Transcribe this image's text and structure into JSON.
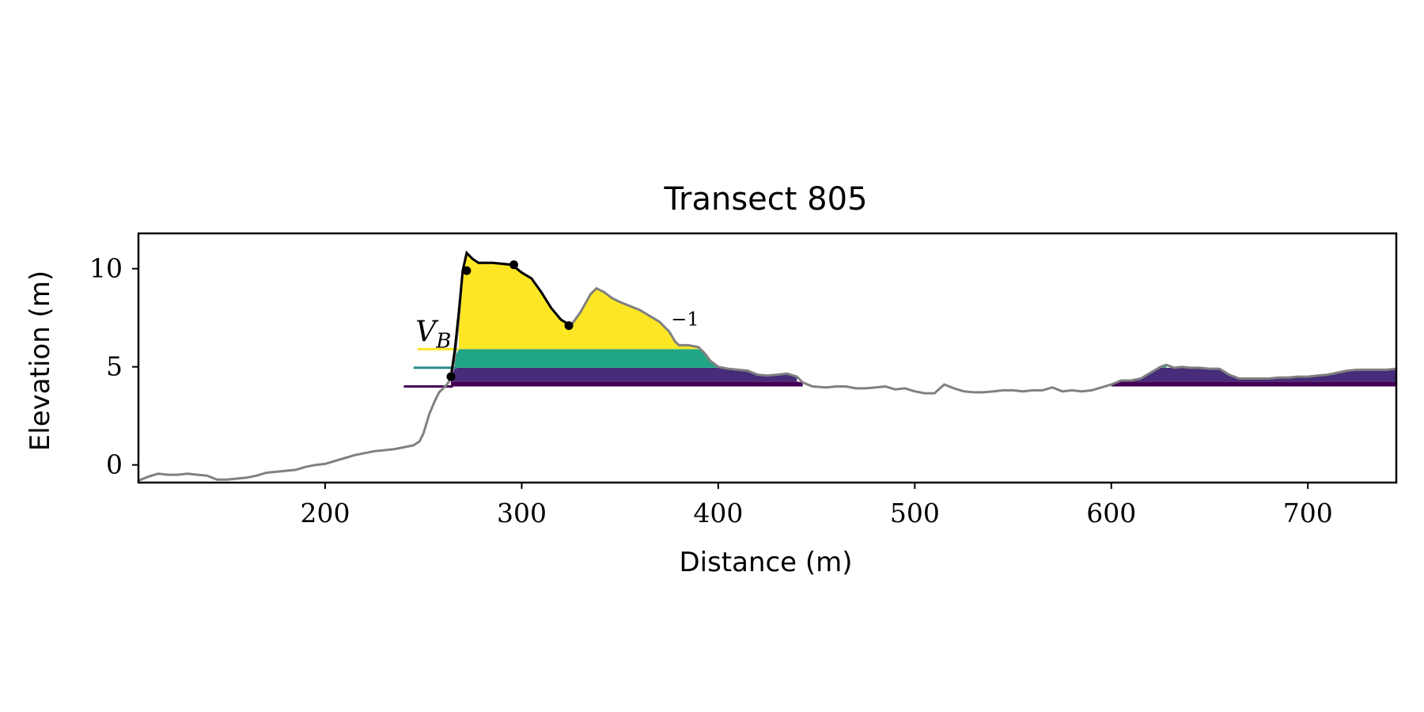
{
  "chart_data": {
    "type": "area",
    "title": "Transect 805",
    "xlabel": "Distance (m)",
    "ylabel": "Elevation (m)",
    "xlim": [
      105,
      745
    ],
    "ylim": [
      -0.9,
      11.8
    ],
    "xticks": [
      200,
      300,
      400,
      500,
      600,
      700
    ],
    "yticks": [
      0,
      5,
      10
    ],
    "grid": false,
    "colors": {
      "profile": "#808080",
      "dune": "#000000",
      "band_yellow": "#fde725",
      "band_green": "#21a685",
      "band_teal": "#2a8b8b",
      "band_purple": "#472c7a",
      "band_dark": "#440154"
    },
    "profile": {
      "x": [
        105,
        110,
        115,
        120,
        125,
        130,
        135,
        140,
        145,
        150,
        155,
        160,
        165,
        170,
        175,
        180,
        185,
        190,
        195,
        200,
        205,
        210,
        215,
        220,
        225,
        230,
        235,
        240,
        245,
        248,
        250,
        253,
        256,
        258,
        260,
        262,
        264,
        266,
        268,
        270,
        272,
        275,
        278,
        282,
        285,
        290,
        295,
        300,
        305,
        310,
        315,
        320,
        325,
        330,
        335,
        338,
        342,
        346,
        350,
        355,
        360,
        365,
        370,
        375,
        378,
        380,
        385,
        390,
        393,
        396,
        400,
        405,
        410,
        415,
        420,
        425,
        430,
        435,
        440,
        443,
        448,
        455,
        460,
        465,
        470,
        475,
        480,
        485,
        490,
        495,
        500,
        505,
        510,
        515,
        520,
        525,
        530,
        535,
        540,
        545,
        550,
        555,
        560,
        565,
        570,
        575,
        580,
        585,
        590,
        595,
        600,
        605,
        610,
        615,
        620,
        625,
        628,
        632,
        636,
        640,
        645,
        650,
        655,
        660,
        665,
        670,
        675,
        680,
        685,
        690,
        695,
        700,
        705,
        710,
        715,
        720,
        725,
        730,
        735,
        740,
        745
      ],
      "y": [
        -0.8,
        -0.6,
        -0.45,
        -0.5,
        -0.5,
        -0.45,
        -0.5,
        -0.55,
        -0.75,
        -0.75,
        -0.7,
        -0.65,
        -0.55,
        -0.4,
        -0.35,
        -0.3,
        -0.25,
        -0.1,
        0.0,
        0.05,
        0.2,
        0.35,
        0.5,
        0.6,
        0.7,
        0.75,
        0.8,
        0.9,
        1.0,
        1.2,
        1.6,
        2.6,
        3.3,
        3.7,
        3.9,
        4.1,
        4.4,
        5.5,
        7.5,
        9.9,
        10.8,
        10.5,
        10.3,
        10.3,
        10.3,
        10.25,
        10.2,
        9.8,
        9.5,
        8.8,
        8.0,
        7.4,
        7.1,
        7.8,
        8.7,
        9.0,
        8.8,
        8.5,
        8.3,
        8.1,
        7.9,
        7.6,
        7.3,
        6.8,
        6.3,
        6.1,
        6.1,
        6.0,
        5.7,
        5.3,
        5.0,
        4.9,
        4.85,
        4.8,
        4.6,
        4.55,
        4.6,
        4.65,
        4.5,
        4.2,
        4.0,
        3.95,
        4.0,
        4.0,
        3.9,
        3.9,
        3.95,
        4.0,
        3.85,
        3.9,
        3.75,
        3.65,
        3.65,
        4.1,
        3.9,
        3.75,
        3.7,
        3.7,
        3.75,
        3.8,
        3.8,
        3.75,
        3.8,
        3.8,
        3.95,
        3.75,
        3.8,
        3.75,
        3.8,
        3.95,
        4.1,
        4.3,
        4.3,
        4.4,
        4.7,
        5.0,
        5.1,
        4.95,
        5.0,
        4.95,
        4.95,
        4.9,
        4.9,
        4.6,
        4.4,
        4.4,
        4.4,
        4.4,
        4.45,
        4.45,
        4.5,
        4.5,
        4.55,
        4.6,
        4.7,
        4.8,
        4.85,
        4.85,
        4.85,
        4.85,
        4.9
      ]
    },
    "dune_line": {
      "x": [
        264,
        266,
        268,
        270,
        272,
        275,
        278,
        282,
        285,
        290,
        295,
        300,
        305,
        310,
        315,
        320,
        325
      ],
      "y": [
        4.5,
        5.9,
        7.8,
        9.9,
        10.8,
        10.5,
        10.3,
        10.3,
        10.3,
        10.25,
        10.2,
        9.8,
        9.5,
        8.8,
        8.0,
        7.4,
        7.1
      ]
    },
    "markers": {
      "x": [
        264,
        272,
        296,
        324
      ],
      "y": [
        4.5,
        9.9,
        10.2,
        7.1
      ]
    },
    "levels": [
      {
        "y": 4.0,
        "x_start": 240,
        "x_fill_start": 265
      },
      {
        "y": 4.95,
        "x_start": 245,
        "x_fill_start": 267
      },
      {
        "y": 5.9,
        "x_start": 247,
        "x_fill_start": 268
      }
    ],
    "annotations": [
      {
        "text": "V_B",
        "x": 246,
        "y": 6.3
      },
      {
        "text": "−1",
        "x": 376,
        "y": 7.1
      }
    ]
  }
}
